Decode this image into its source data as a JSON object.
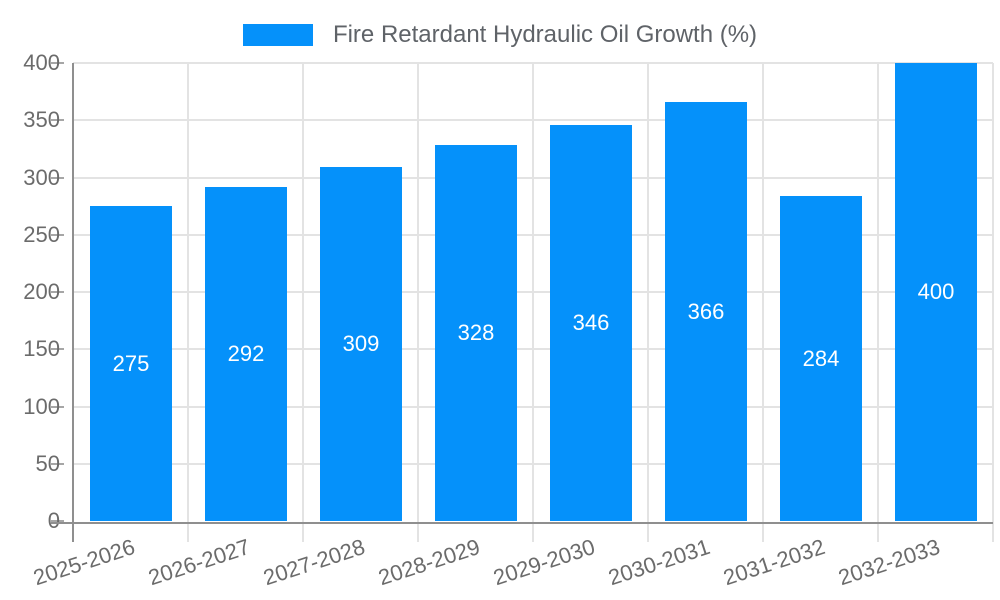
{
  "chart_data": {
    "type": "bar",
    "title": "Fire Retardant Hydraulic Oil Growth (%)",
    "categories": [
      "2025-2026",
      "2026-2027",
      "2027-2028",
      "2028-2029",
      "2029-2030",
      "2030-2031",
      "2031-2032",
      "2032-2033"
    ],
    "values": [
      275,
      292,
      309,
      328,
      346,
      366,
      284,
      400
    ],
    "series_name": "Fire Retardant Hydraulic Oil Growth (%)",
    "xlabel": "",
    "ylabel": "",
    "ylim": [
      0,
      400
    ],
    "y_ticks": [
      0,
      50,
      100,
      150,
      200,
      250,
      300,
      350,
      400
    ],
    "grid": "horizontal and vertical category boundaries",
    "legend_position": "top-center",
    "bar_labels_visible": true,
    "colors": {
      "bar": "#0591fa",
      "bar_label_text": "#ffffff",
      "gridline": "#e3e3e3",
      "tick": "#a6a6a6",
      "axis_line": "#8f8f8f",
      "axis_text": "#6b6b6b",
      "legend_text": "#5f6368",
      "background": "#ffffff"
    }
  }
}
